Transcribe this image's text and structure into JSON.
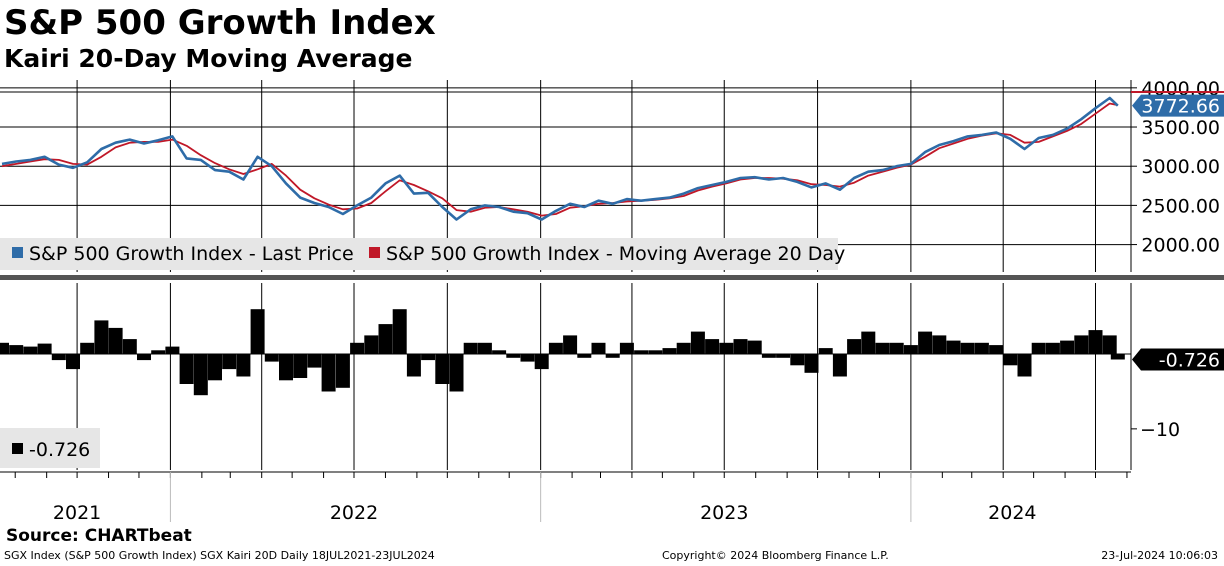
{
  "title": "S&P 500 Growth Index",
  "subtitle": "Kairi 20-Day Moving Average",
  "colors": {
    "price": "#2e6ca8",
    "ma": "#c01828",
    "kairi": "#000000",
    "grid": "#000000"
  },
  "chart_data": [
    {
      "type": "line",
      "title": "S&P 500 Growth Index",
      "ylim": [
        1650,
        4100
      ],
      "y_ticks": [
        "4000.00",
        "3500.00",
        "3000.00",
        "2500.00",
        "2000.00"
      ],
      "y_tick_values": [
        4000,
        3500,
        3000,
        2500,
        2000
      ],
      "last_value_label": "3772.66",
      "last_value": 3772.66,
      "legend": [
        "S&P 500 Growth Index - Last Price",
        "S&P 500 Growth Index - Moving Average 20 Day"
      ],
      "series": [
        {
          "name": "S&P 500 Growth Index - Last Price",
          "dates": [
            "2021-07-19",
            "2021-08-02",
            "2021-08-16",
            "2021-08-30",
            "2021-09-13",
            "2021-09-27",
            "2021-10-11",
            "2021-10-25",
            "2021-11-08",
            "2021-11-22",
            "2021-12-06",
            "2021-12-20",
            "2022-01-03",
            "2022-01-17",
            "2022-01-31",
            "2022-02-14",
            "2022-02-28",
            "2022-03-14",
            "2022-03-28",
            "2022-04-11",
            "2022-04-25",
            "2022-05-09",
            "2022-05-23",
            "2022-06-06",
            "2022-06-20",
            "2022-07-04",
            "2022-07-18",
            "2022-08-01",
            "2022-08-15",
            "2022-08-29",
            "2022-09-12",
            "2022-09-26",
            "2022-10-10",
            "2022-10-24",
            "2022-11-07",
            "2022-11-21",
            "2022-12-05",
            "2022-12-19",
            "2023-01-02",
            "2023-01-16",
            "2023-01-30",
            "2023-02-13",
            "2023-02-27",
            "2023-03-13",
            "2023-03-27",
            "2023-04-10",
            "2023-04-24",
            "2023-05-08",
            "2023-05-22",
            "2023-06-05",
            "2023-06-19",
            "2023-07-03",
            "2023-07-17",
            "2023-07-31",
            "2023-08-14",
            "2023-08-28",
            "2023-09-11",
            "2023-09-25",
            "2023-10-09",
            "2023-10-23",
            "2023-11-06",
            "2023-11-20",
            "2023-12-04",
            "2023-12-18",
            "2024-01-01",
            "2024-01-15",
            "2024-01-29",
            "2024-02-12",
            "2024-02-26",
            "2024-03-11",
            "2024-03-25",
            "2024-04-08",
            "2024-04-22",
            "2024-05-06",
            "2024-05-20",
            "2024-06-03",
            "2024-06-17",
            "2024-07-01",
            "2024-07-15",
            "2024-07-23"
          ],
          "values": [
            3030,
            3060,
            3080,
            3120,
            3020,
            2980,
            3050,
            3220,
            3300,
            3340,
            3290,
            3330,
            3380,
            3100,
            3080,
            2950,
            2930,
            2830,
            3120,
            3000,
            2780,
            2600,
            2530,
            2480,
            2390,
            2500,
            2600,
            2780,
            2880,
            2650,
            2660,
            2480,
            2320,
            2450,
            2500,
            2480,
            2420,
            2400,
            2320,
            2430,
            2520,
            2480,
            2560,
            2520,
            2580,
            2560,
            2580,
            2600,
            2650,
            2720,
            2760,
            2800,
            2850,
            2860,
            2830,
            2850,
            2800,
            2730,
            2780,
            2700,
            2850,
            2930,
            2950,
            3000,
            3030,
            3180,
            3270,
            3320,
            3380,
            3400,
            3430,
            3350,
            3220,
            3360,
            3400,
            3480,
            3600,
            3740,
            3870,
            3772.66
          ]
        },
        {
          "name": "S&P 500 Growth Index - Moving Average 20 Day",
          "dates": [
            "2021-07-19",
            "2021-08-02",
            "2021-08-16",
            "2021-08-30",
            "2021-09-13",
            "2021-09-27",
            "2021-10-11",
            "2021-10-25",
            "2021-11-08",
            "2021-11-22",
            "2021-12-06",
            "2021-12-20",
            "2022-01-03",
            "2022-01-17",
            "2022-01-31",
            "2022-02-14",
            "2022-02-28",
            "2022-03-14",
            "2022-03-28",
            "2022-04-11",
            "2022-04-25",
            "2022-05-09",
            "2022-05-23",
            "2022-06-06",
            "2022-06-20",
            "2022-07-04",
            "2022-07-18",
            "2022-08-01",
            "2022-08-15",
            "2022-08-29",
            "2022-09-12",
            "2022-09-26",
            "2022-10-10",
            "2022-10-24",
            "2022-11-07",
            "2022-11-21",
            "2022-12-05",
            "2022-12-19",
            "2023-01-02",
            "2023-01-16",
            "2023-01-30",
            "2023-02-13",
            "2023-02-27",
            "2023-03-13",
            "2023-03-27",
            "2023-04-10",
            "2023-04-24",
            "2023-05-08",
            "2023-05-22",
            "2023-06-05",
            "2023-06-19",
            "2023-07-03",
            "2023-07-17",
            "2023-07-31",
            "2023-08-14",
            "2023-08-28",
            "2023-09-11",
            "2023-09-25",
            "2023-10-09",
            "2023-10-23",
            "2023-11-06",
            "2023-11-20",
            "2023-12-04",
            "2023-12-18",
            "2024-01-01",
            "2024-01-15",
            "2024-01-29",
            "2024-02-12",
            "2024-02-26",
            "2024-03-11",
            "2024-03-25",
            "2024-04-08",
            "2024-04-22",
            "2024-05-06",
            "2024-05-20",
            "2024-06-03",
            "2024-06-17",
            "2024-07-01",
            "2024-07-15",
            "2024-07-23"
          ],
          "values": [
            3000,
            3030,
            3060,
            3090,
            3080,
            3030,
            3020,
            3120,
            3240,
            3300,
            3310,
            3310,
            3340,
            3260,
            3140,
            3040,
            2960,
            2900,
            2960,
            3030,
            2880,
            2700,
            2590,
            2510,
            2450,
            2460,
            2530,
            2680,
            2820,
            2760,
            2680,
            2590,
            2440,
            2420,
            2470,
            2480,
            2450,
            2420,
            2370,
            2390,
            2470,
            2490,
            2520,
            2530,
            2550,
            2560,
            2570,
            2590,
            2620,
            2690,
            2740,
            2780,
            2830,
            2850,
            2850,
            2840,
            2820,
            2770,
            2760,
            2740,
            2790,
            2880,
            2930,
            2980,
            3020,
            3120,
            3230,
            3290,
            3350,
            3390,
            3420,
            3400,
            3300,
            3310,
            3380,
            3450,
            3540,
            3670,
            3800,
            3780
          ]
        }
      ]
    },
    {
      "type": "bar",
      "title": "Kairi 20-Day Moving Average",
      "ylim": [
        -15.5,
        9.5
      ],
      "y_ticks": [
        "-10"
      ],
      "y_tick_values": [
        -10
      ],
      "last_value_label": "-0.726",
      "last_value": -0.726,
      "legend": [
        "-0.726"
      ],
      "dates": [
        "2021-07-19",
        "2021-08-02",
        "2021-08-16",
        "2021-08-30",
        "2021-09-13",
        "2021-09-27",
        "2021-10-11",
        "2021-10-25",
        "2021-11-08",
        "2021-11-22",
        "2021-12-06",
        "2021-12-20",
        "2022-01-03",
        "2022-01-17",
        "2022-01-31",
        "2022-02-14",
        "2022-02-28",
        "2022-03-14",
        "2022-03-28",
        "2022-04-11",
        "2022-04-25",
        "2022-05-09",
        "2022-05-23",
        "2022-06-06",
        "2022-06-20",
        "2022-07-04",
        "2022-07-18",
        "2022-08-01",
        "2022-08-15",
        "2022-08-29",
        "2022-09-12",
        "2022-09-26",
        "2022-10-10",
        "2022-10-24",
        "2022-11-07",
        "2022-11-21",
        "2022-12-05",
        "2022-12-19",
        "2023-01-02",
        "2023-01-16",
        "2023-01-30",
        "2023-02-13",
        "2023-02-27",
        "2023-03-13",
        "2023-03-27",
        "2023-04-10",
        "2023-04-24",
        "2023-05-08",
        "2023-05-22",
        "2023-06-05",
        "2023-06-19",
        "2023-07-03",
        "2023-07-17",
        "2023-07-31",
        "2023-08-14",
        "2023-08-28",
        "2023-09-11",
        "2023-09-25",
        "2023-10-09",
        "2023-10-23",
        "2023-11-06",
        "2023-11-20",
        "2023-12-04",
        "2023-12-18",
        "2024-01-01",
        "2024-01-15",
        "2024-01-29",
        "2024-02-12",
        "2024-02-26",
        "2024-03-11",
        "2024-03-25",
        "2024-04-08",
        "2024-04-22",
        "2024-05-06",
        "2024-05-20",
        "2024-06-03",
        "2024-06-17",
        "2024-07-01",
        "2024-07-15",
        "2024-07-23"
      ],
      "values": [
        1.5,
        1.2,
        1.0,
        1.4,
        -0.8,
        -2.0,
        1.5,
        4.5,
        3.5,
        2.0,
        -0.8,
        0.5,
        1.0,
        -4.0,
        -5.5,
        -3.5,
        -2.0,
        -3.0,
        6.0,
        -1.0,
        -3.5,
        -3.2,
        -1.8,
        -5.0,
        -4.5,
        1.5,
        2.5,
        4.0,
        6.0,
        -3.0,
        -0.8,
        -4.0,
        -5.0,
        1.5,
        1.5,
        0.5,
        -0.5,
        -1.0,
        -2.0,
        1.5,
        2.5,
        -0.5,
        1.5,
        -0.5,
        1.5,
        0.5,
        0.5,
        0.8,
        1.5,
        3.0,
        2.0,
        1.5,
        2.0,
        1.8,
        -0.5,
        -0.5,
        -1.5,
        -2.5,
        0.8,
        -3.0,
        2.0,
        3.0,
        1.5,
        1.5,
        1.2,
        3.0,
        2.5,
        1.8,
        1.5,
        1.5,
        1.2,
        -1.5,
        -3.0,
        1.5,
        1.5,
        1.8,
        2.5,
        3.2,
        2.5,
        -0.726
      ]
    }
  ],
  "x_axis": {
    "year_labels": [
      "2021",
      "2022",
      "2023",
      "2024"
    ]
  },
  "footer": {
    "source": "Source: CHARTbeat",
    "left": "SGX Index (S&P 500 Growth Index) SGX Kairi 20D  Daily 18JUL2021-23JUL2024",
    "center": "Copyright© 2024 Bloomberg Finance L.P.",
    "right": "23-Jul-2024 10:06:03"
  }
}
